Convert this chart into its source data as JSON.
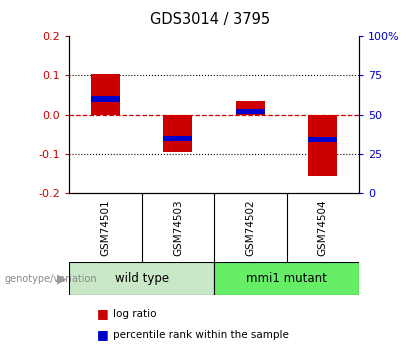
{
  "title": "GDS3014 / 3795",
  "samples": [
    "GSM74501",
    "GSM74503",
    "GSM74502",
    "GSM74504"
  ],
  "log_ratios": [
    0.105,
    -0.095,
    0.035,
    -0.155
  ],
  "percentile_ranks": [
    60,
    35,
    52,
    34
  ],
  "groups": [
    {
      "label": "wild type",
      "indices": [
        0,
        1
      ],
      "color": "#c8e8c8"
    },
    {
      "label": "mmi1 mutant",
      "indices": [
        2,
        3
      ],
      "color": "#66ee66"
    }
  ],
  "bar_width": 0.4,
  "ylim_left": [
    -0.2,
    0.2
  ],
  "yticks_left": [
    -0.2,
    -0.1,
    0.0,
    0.1,
    0.2
  ],
  "yticks_right": [
    0,
    25,
    50,
    75,
    100
  ],
  "left_color": "#cc0000",
  "right_color": "#0000cc",
  "bar_color_red": "#cc0000",
  "bar_color_blue": "#0000cc",
  "hline_color": "#cc0000",
  "dotted_color": "black",
  "bg_color": "white",
  "plot_bg_color": "white",
  "sample_box_color": "#c0c0c0",
  "genotype_label_color": "#888888",
  "arrow_color": "#999999"
}
